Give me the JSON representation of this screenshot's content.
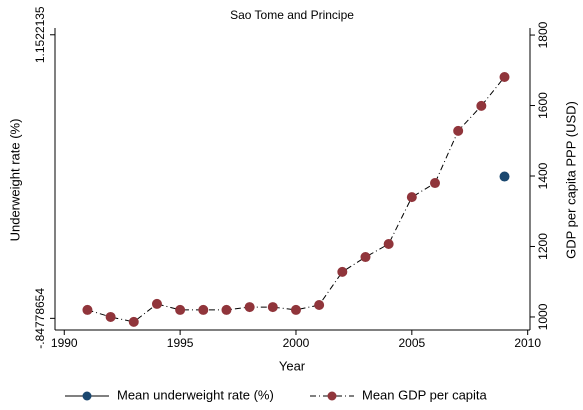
{
  "chart_data": {
    "type": "line",
    "title": "Sao Tome and Principe",
    "xlabel": "Year",
    "ylabel": "Underweight rate (%)",
    "y2label": "GDP per capita PPP (USD)",
    "x": [
      1991,
      1992,
      1993,
      1994,
      1995,
      1996,
      1997,
      1998,
      1999,
      2000,
      2001,
      2002,
      2003,
      2004,
      2005,
      2006,
      2007,
      2008,
      2009
    ],
    "xlim": [
      1989.6,
      2010.1
    ],
    "xticks": [
      1990,
      1995,
      2000,
      2005,
      2010
    ],
    "ylim": [
      -0.93,
      1.2
    ],
    "yticks": [
      {
        "value": -0.84778654,
        "label": "-.84778654"
      },
      1.1522135
    ],
    "y2lim": [
      963,
      1820
    ],
    "y2ticks": [
      1000,
      1200,
      1400,
      1600,
      1800
    ],
    "series": [
      {
        "name": "Mean underweight rate (%)",
        "color": "#1a476f",
        "line": "solid",
        "values": [
          null,
          null,
          null,
          null,
          null,
          null,
          null,
          null,
          null,
          null,
          null,
          null,
          null,
          null,
          null,
          null,
          null,
          null,
          0.1522135
        ]
      },
      {
        "name": "Mean GDP per capita",
        "color": "#90353b",
        "line": "dash-dot",
        "axis": "y2",
        "values": [
          1020,
          1000,
          986,
          1037,
          1020,
          1020,
          1020,
          1028,
          1028,
          1020,
          1034,
          1128,
          1170,
          1207,
          1340,
          1380,
          1528,
          1599,
          1681
        ]
      }
    ]
  }
}
